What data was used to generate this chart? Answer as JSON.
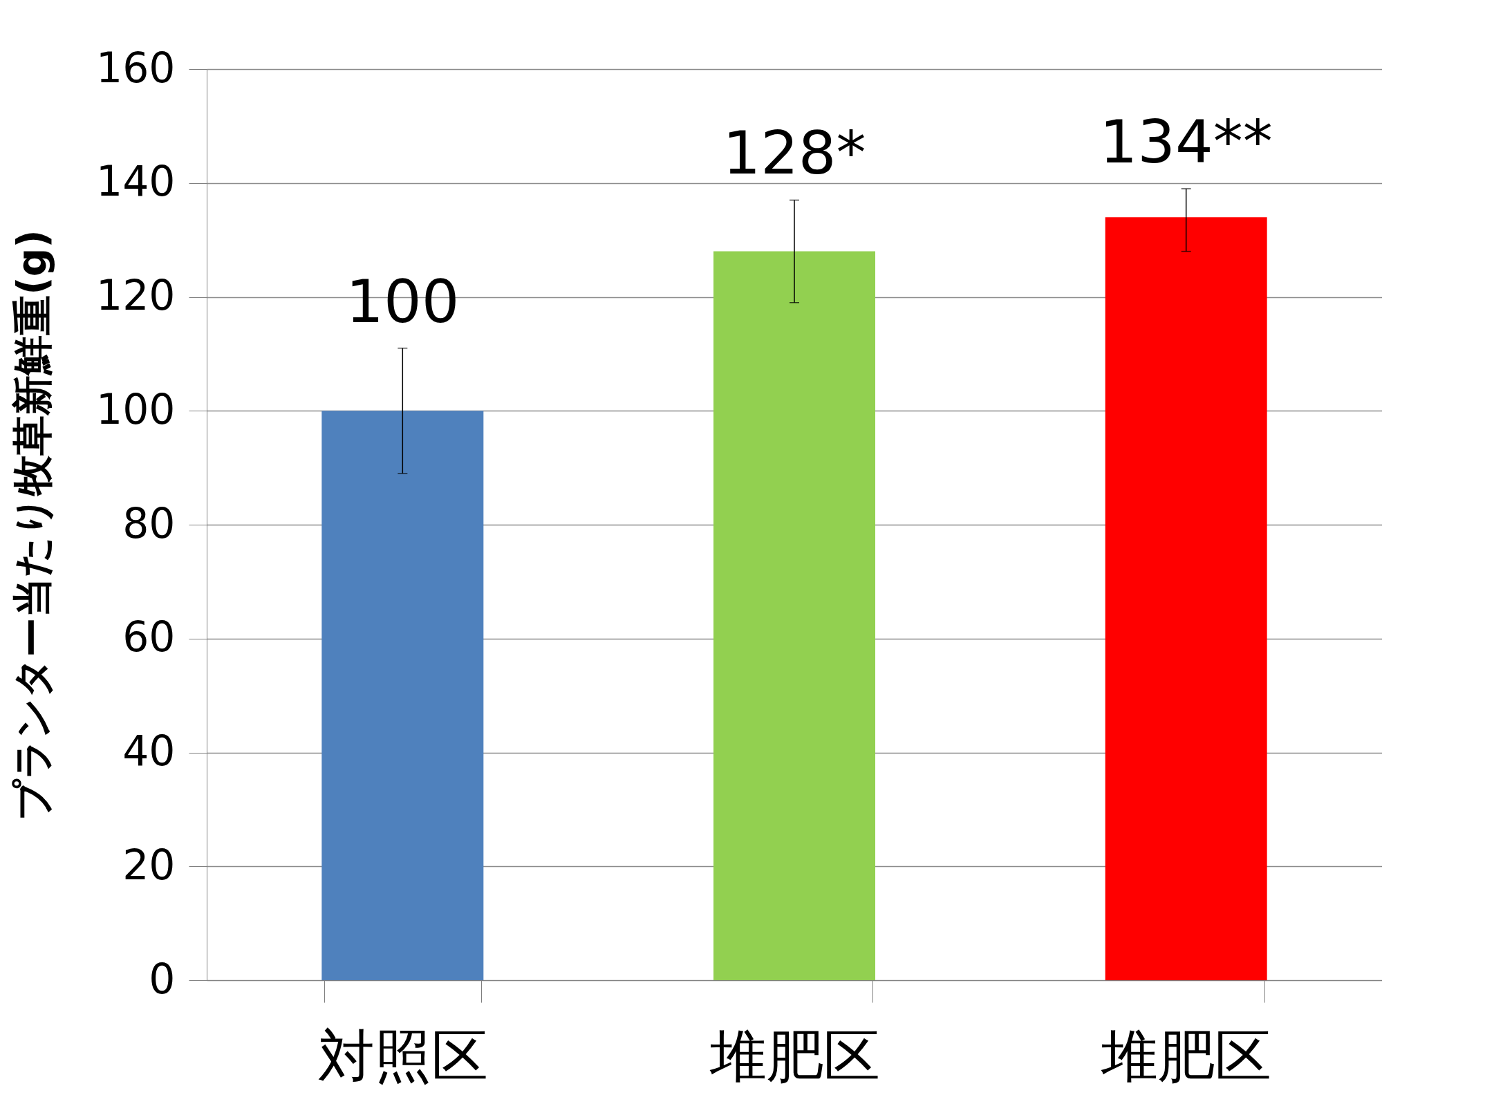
{
  "chart_data": {
    "type": "bar",
    "ylabel": "プランター当たり牧草新鮮重(g)",
    "categories": [
      "対照区",
      "堆肥区",
      "堆肥区"
    ],
    "values": [
      100,
      128,
      134
    ],
    "colors": [
      "#4f81bd",
      "#92d050",
      "#ff0000"
    ],
    "errors": [
      [
        89,
        111
      ],
      [
        119,
        137
      ],
      [
        128,
        139
      ]
    ],
    "value_labels": [
      "100",
      "128*",
      "134**"
    ],
    "ylim": [
      0,
      160
    ],
    "yticks": [
      0,
      20,
      40,
      60,
      80,
      100,
      120,
      140,
      160
    ],
    "grid": "y"
  }
}
